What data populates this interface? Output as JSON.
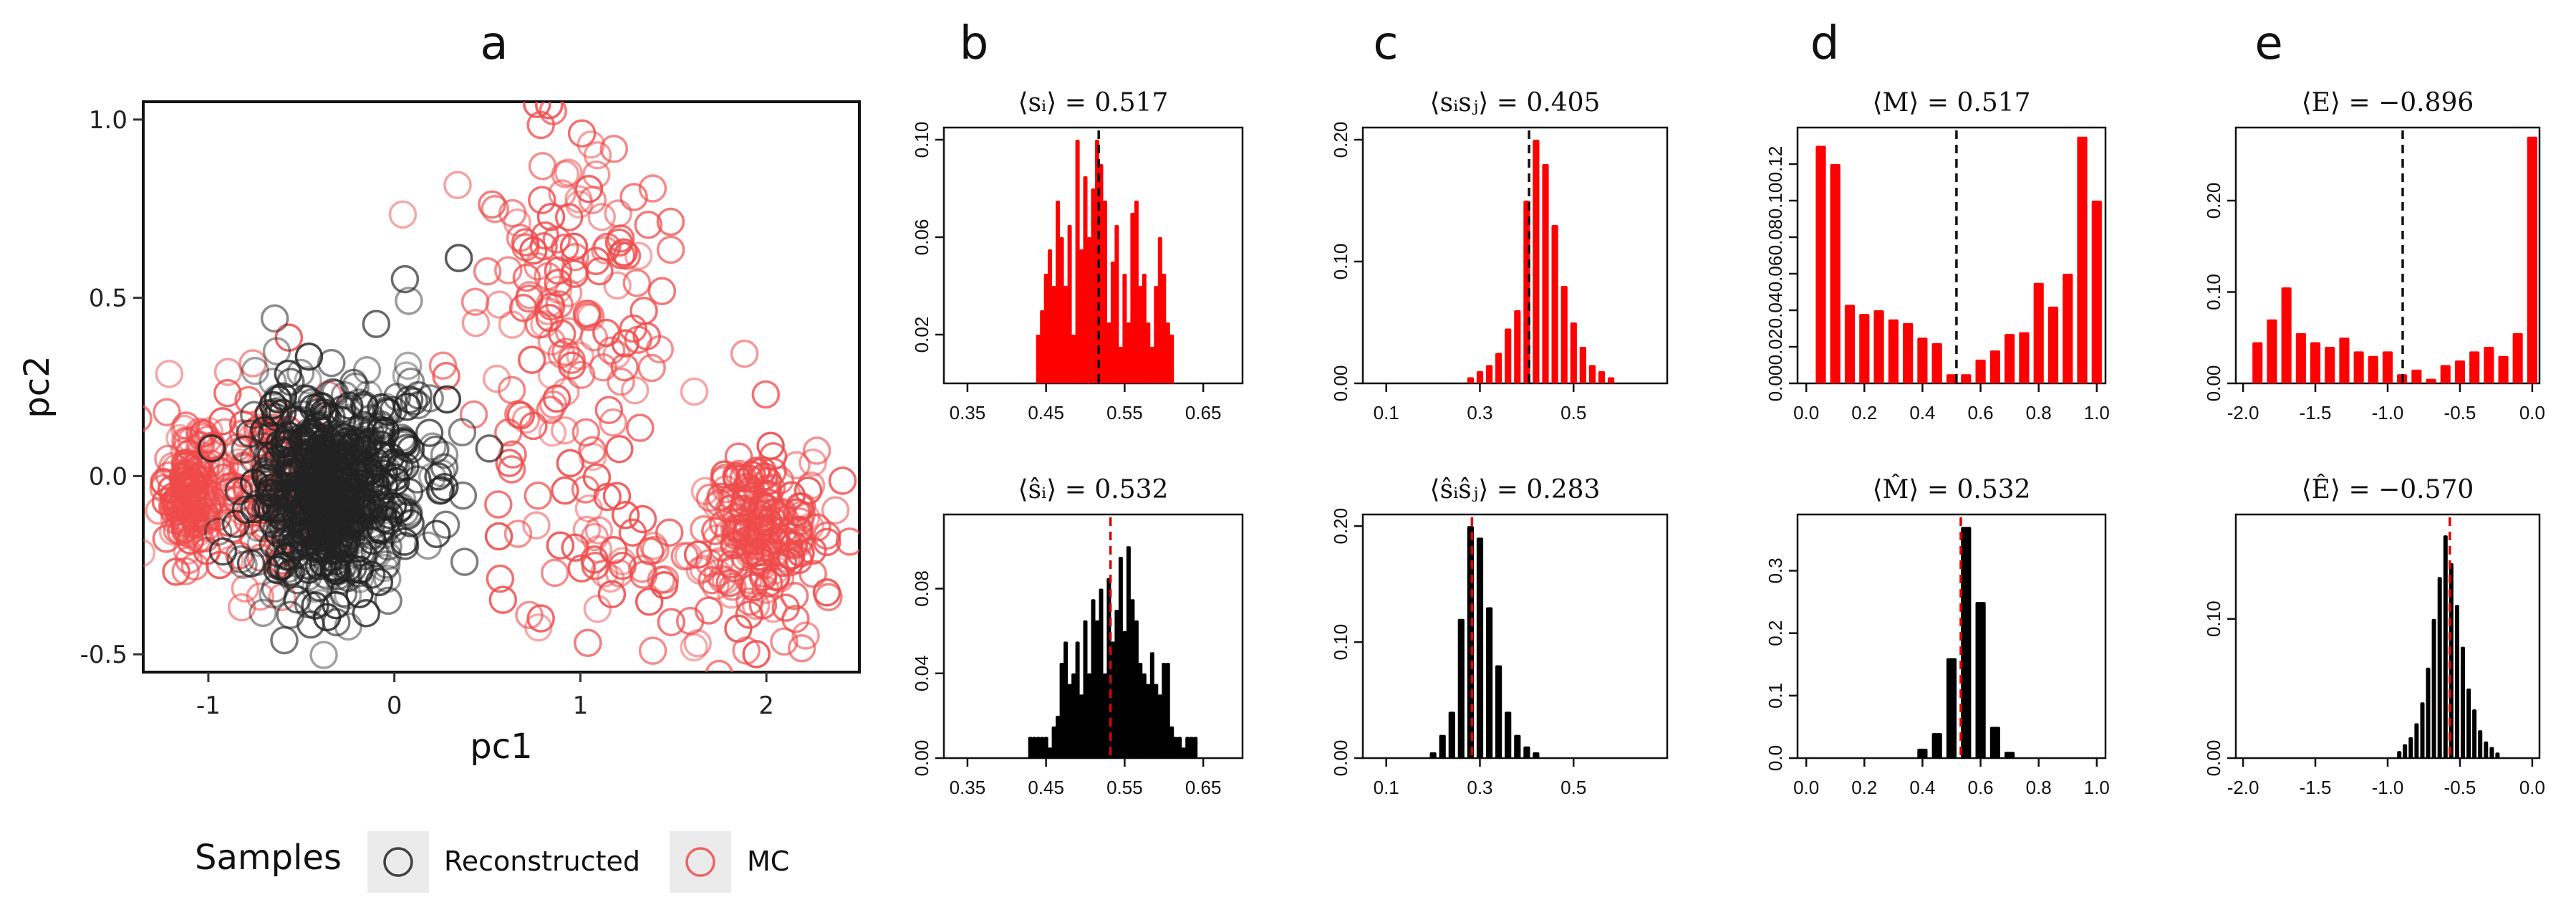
{
  "chart_data": [
    {
      "panel": "a",
      "type": "scatter",
      "title": "a",
      "xlabel": "pc1",
      "ylabel": "pc2",
      "xlim": [
        -1.35,
        2.5
      ],
      "ylim": [
        -0.55,
        1.05
      ],
      "xticks": [
        "-1",
        "0",
        "1",
        "2"
      ],
      "xtick_values": [
        -1,
        0,
        1,
        2
      ],
      "yticks": [
        "-0.5",
        "0.0",
        "0.5",
        "1.0"
      ],
      "ytick_values": [
        -0.5,
        0.0,
        0.5,
        1.0
      ],
      "legend": {
        "title": "Samples",
        "entries": [
          "Reconstructed",
          "MC"
        ],
        "placement": "bottom"
      },
      "series": [
        {
          "name": "MC",
          "color": "#ef4b4b",
          "clusters": [
            {
              "cx": -1.1,
              "cy": -0.05,
              "sx": 0.08,
              "sy": 0.09,
              "n": 140
            },
            {
              "cx": -0.75,
              "cy": 0.0,
              "sx": 0.18,
              "sy": 0.14,
              "n": 110
            },
            {
              "cx": 0.9,
              "cy": 0.45,
              "sx": 0.3,
              "sy": 0.28,
              "n": 150
            },
            {
              "cx": 1.95,
              "cy": -0.15,
              "sx": 0.18,
              "sy": 0.12,
              "n": 200
            },
            {
              "cx": 1.2,
              "cy": -0.25,
              "sx": 0.35,
              "sy": 0.12,
              "n": 50
            }
          ]
        },
        {
          "name": "Reconstructed",
          "color": "#222222",
          "clusters": [
            {
              "cx": -0.35,
              "cy": -0.05,
              "sx": 0.19,
              "sy": 0.14,
              "n": 700
            },
            {
              "cx": 0.15,
              "cy": 0.1,
              "sx": 0.2,
              "sy": 0.18,
              "n": 40
            }
          ]
        }
      ]
    },
    {
      "panel": "b",
      "position": "top",
      "type": "bar",
      "color": "#ff0000",
      "title": "⟨sᵢ⟩ = 0.517",
      "mean": 0.517,
      "mean_line_color": "#111111",
      "xlim": [
        0.32,
        0.7
      ],
      "xticks": [
        "0.35",
        "0.45",
        "0.55",
        "0.65"
      ],
      "xtick_values": [
        0.35,
        0.45,
        0.55,
        0.65
      ],
      "ylim": [
        0.0,
        0.105
      ],
      "yticks": [
        "0.02",
        "0.06",
        "0.10"
      ],
      "ytick_values": [
        0.02,
        0.06,
        0.1
      ],
      "x": [
        0.44,
        0.445,
        0.45,
        0.455,
        0.46,
        0.465,
        0.47,
        0.475,
        0.48,
        0.485,
        0.49,
        0.495,
        0.5,
        0.505,
        0.51,
        0.515,
        0.52,
        0.525,
        0.53,
        0.535,
        0.54,
        0.545,
        0.55,
        0.555,
        0.56,
        0.565,
        0.57,
        0.575,
        0.58,
        0.585,
        0.59,
        0.595,
        0.6,
        0.605,
        0.61
      ],
      "values": [
        0.02,
        0.03,
        0.045,
        0.055,
        0.04,
        0.075,
        0.06,
        0.04,
        0.065,
        0.02,
        0.1,
        0.055,
        0.085,
        0.06,
        0.08,
        0.1,
        0.09,
        0.075,
        0.025,
        0.05,
        0.065,
        0.015,
        0.045,
        0.025,
        0.07,
        0.075,
        0.04,
        0.045,
        0.025,
        0.015,
        0.04,
        0.06,
        0.045,
        0.025,
        0.02
      ]
    },
    {
      "panel": "b",
      "position": "bottom",
      "type": "bar",
      "color": "#000000",
      "title": "⟨ŝᵢ⟩ = 0.532",
      "mean": 0.532,
      "mean_line_color": "#e00000",
      "xlim": [
        0.32,
        0.7
      ],
      "xticks": [
        "0.35",
        "0.45",
        "0.55",
        "0.65"
      ],
      "xtick_values": [
        0.35,
        0.45,
        0.55,
        0.65
      ],
      "ylim": [
        0.0,
        0.115
      ],
      "yticks": [
        "0.00",
        "0.04",
        "0.08"
      ],
      "ytick_values": [
        0.0,
        0.04,
        0.08
      ],
      "x": [
        0.43,
        0.435,
        0.44,
        0.445,
        0.45,
        0.455,
        0.46,
        0.465,
        0.47,
        0.475,
        0.48,
        0.485,
        0.49,
        0.495,
        0.5,
        0.505,
        0.51,
        0.515,
        0.52,
        0.525,
        0.53,
        0.535,
        0.54,
        0.545,
        0.55,
        0.555,
        0.56,
        0.565,
        0.57,
        0.575,
        0.58,
        0.585,
        0.59,
        0.595,
        0.6,
        0.605,
        0.61,
        0.615,
        0.62,
        0.625,
        0.63,
        0.635,
        0.64
      ],
      "values": [
        0.01,
        0.01,
        0.01,
        0.01,
        0.01,
        0.005,
        0.015,
        0.02,
        0.045,
        0.055,
        0.035,
        0.04,
        0.055,
        0.03,
        0.065,
        0.04,
        0.075,
        0.065,
        0.08,
        0.04,
        0.085,
        0.055,
        0.07,
        0.095,
        0.06,
        0.1,
        0.075,
        0.065,
        0.045,
        0.04,
        0.035,
        0.05,
        0.035,
        0.03,
        0.045,
        0.045,
        0.015,
        0.01,
        0.01,
        0.005,
        0.01,
        0.01,
        0.01
      ]
    },
    {
      "panel": "c",
      "position": "top",
      "type": "bar",
      "color": "#ff0000",
      "title": "⟨sᵢsⱼ⟩ = 0.405",
      "mean": 0.405,
      "mean_line_color": "#111111",
      "xlim": [
        0.05,
        0.7
      ],
      "xticks": [
        "0.1",
        "0.3",
        "0.5"
      ],
      "xtick_values": [
        0.1,
        0.3,
        0.5
      ],
      "ylim": [
        0.0,
        0.21
      ],
      "yticks": [
        "0.00",
        "0.10",
        "0.20"
      ],
      "ytick_values": [
        0.0,
        0.1,
        0.2
      ],
      "x": [
        0.28,
        0.3,
        0.32,
        0.34,
        0.36,
        0.38,
        0.4,
        0.42,
        0.44,
        0.46,
        0.48,
        0.5,
        0.52,
        0.54,
        0.56,
        0.58
      ],
      "values": [
        0.005,
        0.01,
        0.015,
        0.025,
        0.045,
        0.06,
        0.15,
        0.2,
        0.18,
        0.13,
        0.08,
        0.05,
        0.03,
        0.015,
        0.01,
        0.005
      ]
    },
    {
      "panel": "c",
      "position": "bottom",
      "type": "bar",
      "color": "#000000",
      "title": "⟨ŝᵢŝⱼ⟩ = 0.283",
      "mean": 0.283,
      "mean_line_color": "#e00000",
      "xlim": [
        0.05,
        0.7
      ],
      "xticks": [
        "0.1",
        "0.3",
        "0.5"
      ],
      "xtick_values": [
        0.1,
        0.3,
        0.5
      ],
      "ylim": [
        0.0,
        0.21
      ],
      "yticks": [
        "0.00",
        "0.10",
        "0.20"
      ],
      "ytick_values": [
        0.0,
        0.1,
        0.2
      ],
      "x": [
        0.2,
        0.22,
        0.24,
        0.26,
        0.28,
        0.3,
        0.32,
        0.34,
        0.36,
        0.38,
        0.4,
        0.42
      ],
      "values": [
        0.005,
        0.02,
        0.04,
        0.12,
        0.2,
        0.19,
        0.13,
        0.08,
        0.04,
        0.02,
        0.01,
        0.005
      ]
    },
    {
      "panel": "d",
      "position": "top",
      "type": "bar",
      "color": "#ff0000",
      "title": "⟨M⟩ = 0.517",
      "mean": 0.517,
      "mean_line_color": "#111111",
      "xlim": [
        -0.03,
        1.03
      ],
      "xticks": [
        "0.0",
        "0.2",
        "0.4",
        "0.6",
        "0.8",
        "1.0"
      ],
      "xtick_values": [
        0.0,
        0.2,
        0.4,
        0.6,
        0.8,
        1.0
      ],
      "ylim": [
        0.0,
        0.14
      ],
      "yticks": [
        "0.00",
        "0.02",
        "0.04",
        "0.06",
        "0.08",
        "0.10",
        "0.12"
      ],
      "ytick_values": [
        0.0,
        0.02,
        0.04,
        0.06,
        0.08,
        0.1,
        0.12
      ],
      "x": [
        0.05,
        0.1,
        0.15,
        0.2,
        0.25,
        0.3,
        0.35,
        0.4,
        0.45,
        0.5,
        0.55,
        0.6,
        0.65,
        0.7,
        0.75,
        0.8,
        0.85,
        0.9,
        0.95,
        1.0
      ],
      "values": [
        0.13,
        0.12,
        0.043,
        0.038,
        0.04,
        0.035,
        0.033,
        0.025,
        0.022,
        0.005,
        0.005,
        0.013,
        0.018,
        0.027,
        0.028,
        0.055,
        0.042,
        0.06,
        0.135,
        0.1
      ]
    },
    {
      "panel": "d",
      "position": "bottom",
      "type": "bar",
      "color": "#000000",
      "title": "⟨M̂⟩ = 0.532",
      "mean": 0.532,
      "mean_line_color": "#e00000",
      "xlim": [
        -0.03,
        1.03
      ],
      "xticks": [
        "0.0",
        "0.2",
        "0.4",
        "0.6",
        "0.8",
        "1.0"
      ],
      "xtick_values": [
        0.0,
        0.2,
        0.4,
        0.6,
        0.8,
        1.0
      ],
      "ylim": [
        0.0,
        0.39
      ],
      "yticks": [
        "0.0",
        "0.1",
        "0.2",
        "0.3"
      ],
      "ytick_values": [
        0.0,
        0.1,
        0.2,
        0.3
      ],
      "x": [
        0.4,
        0.45,
        0.5,
        0.55,
        0.6,
        0.65,
        0.7
      ],
      "values": [
        0.015,
        0.04,
        0.16,
        0.37,
        0.25,
        0.05,
        0.01
      ]
    },
    {
      "panel": "e",
      "position": "top",
      "type": "bar",
      "color": "#ff0000",
      "title": "⟨E⟩ = −0.896",
      "mean": -0.896,
      "mean_line_color": "#111111",
      "xlim": [
        -2.05,
        0.05
      ],
      "xticks": [
        "-2.0",
        "-1.5",
        "-1.0",
        "-0.5",
        "0.0"
      ],
      "xtick_values": [
        -2.0,
        -1.5,
        -1.0,
        -0.5,
        0.0
      ],
      "ylim": [
        0.0,
        0.28
      ],
      "yticks": [
        "0.00",
        "0.10",
        "0.20"
      ],
      "ytick_values": [
        0.0,
        0.1,
        0.2
      ],
      "x": [
        -1.9,
        -1.8,
        -1.7,
        -1.6,
        -1.5,
        -1.4,
        -1.3,
        -1.2,
        -1.1,
        -1.0,
        -0.9,
        -0.8,
        -0.7,
        -0.6,
        -0.5,
        -0.4,
        -0.3,
        -0.2,
        -0.1,
        0.0
      ],
      "values": [
        0.045,
        0.07,
        0.105,
        0.055,
        0.045,
        0.04,
        0.05,
        0.035,
        0.03,
        0.035,
        0.01,
        0.015,
        0.005,
        0.02,
        0.025,
        0.035,
        0.04,
        0.03,
        0.055,
        0.27
      ]
    },
    {
      "panel": "e",
      "position": "bottom",
      "type": "bar",
      "color": "#000000",
      "title": "⟨Ê⟩ = −0.570",
      "mean": -0.57,
      "mean_line_color": "#e00000",
      "xlim": [
        -2.05,
        0.05
      ],
      "xticks": [
        "-2.0",
        "-1.5",
        "-1.0",
        "-0.5",
        "0.0"
      ],
      "xtick_values": [
        -2.0,
        -1.5,
        -1.0,
        -0.5,
        0.0
      ],
      "ylim": [
        0.0,
        0.175
      ],
      "yticks": [
        "0.00",
        "0.10"
      ],
      "ytick_values": [
        0.0,
        0.1
      ],
      "x": [
        -0.92,
        -0.88,
        -0.84,
        -0.8,
        -0.76,
        -0.72,
        -0.68,
        -0.64,
        -0.6,
        -0.56,
        -0.52,
        -0.48,
        -0.44,
        -0.4,
        -0.36,
        -0.32,
        -0.28,
        -0.24
      ],
      "values": [
        0.005,
        0.01,
        0.015,
        0.025,
        0.04,
        0.065,
        0.1,
        0.13,
        0.16,
        0.14,
        0.11,
        0.08,
        0.05,
        0.035,
        0.02,
        0.012,
        0.008,
        0.004
      ]
    }
  ]
}
